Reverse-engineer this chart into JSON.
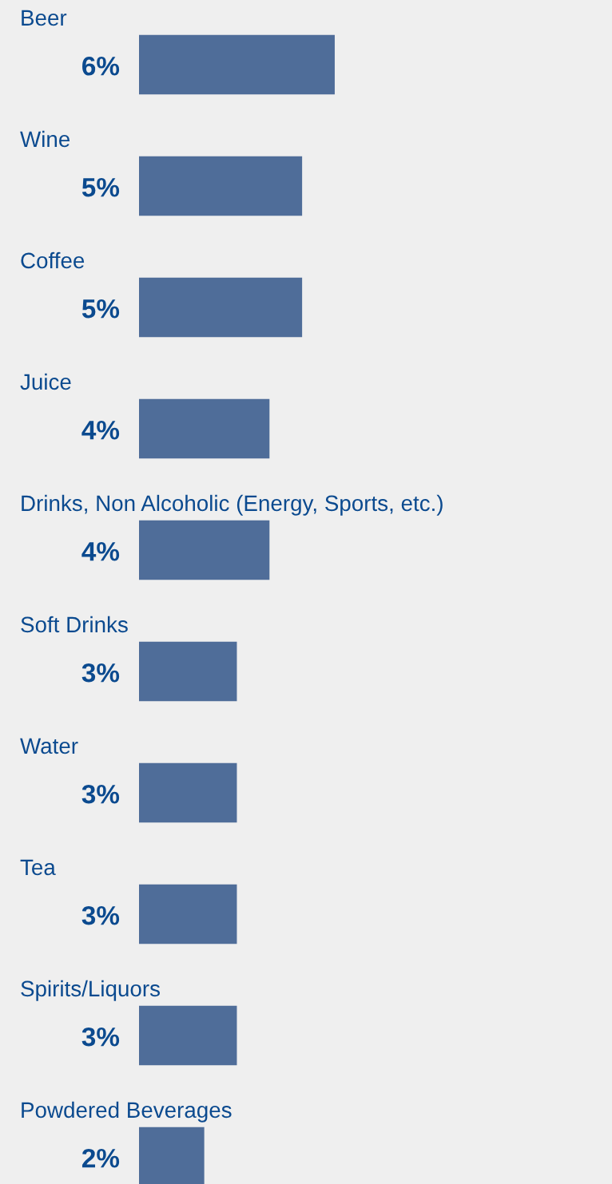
{
  "chart_data": {
    "type": "bar",
    "orientation": "horizontal",
    "categories": [
      "Beer",
      "Wine",
      "Coffee",
      "Juice",
      "Drinks, Non Alcoholic (Energy, Sports, etc.)",
      "Soft Drinks",
      "Water",
      "Tea",
      "Spirits/Liquors",
      "Powdered Beverages"
    ],
    "values": [
      6,
      5,
      5,
      4,
      4,
      3,
      3,
      3,
      3,
      2
    ],
    "value_labels": [
      "6%",
      "5%",
      "5%",
      "4%",
      "4%",
      "3%",
      "3%",
      "3%",
      "3%",
      "2%"
    ],
    "color": "#4f6d99",
    "xlim": [
      0,
      14.5
    ]
  }
}
